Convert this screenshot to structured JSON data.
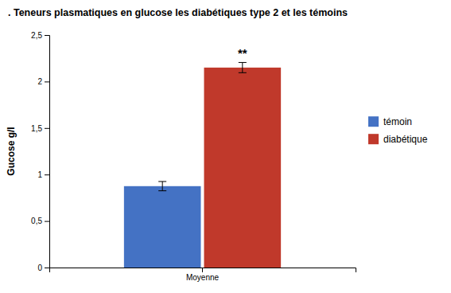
{
  "chart_data": {
    "type": "bar",
    "title": ". Teneurs plasmatiques en glucose les diabétiques type 2  et les témoins",
    "ylabel": "Gucose g/l",
    "categories": [
      "Moyenne"
    ],
    "series": [
      {
        "name": "témoin",
        "color": "#4472c4",
        "values": [
          0.875
        ],
        "errors": [
          0.05
        ]
      },
      {
        "name": "diabétique",
        "color": "#c0392b",
        "values": [
          2.15
        ],
        "errors": [
          0.055
        ],
        "annotation": "**"
      }
    ],
    "ylim": [
      0,
      2.5
    ],
    "yticks": [
      0,
      {
        "value": 0.5,
        "label": "0,5"
      },
      1,
      {
        "value": 1.5,
        "label": "1,5"
      },
      2,
      {
        "value": 2.5,
        "label": "2,5"
      }
    ],
    "grid": false,
    "legend": "right"
  }
}
